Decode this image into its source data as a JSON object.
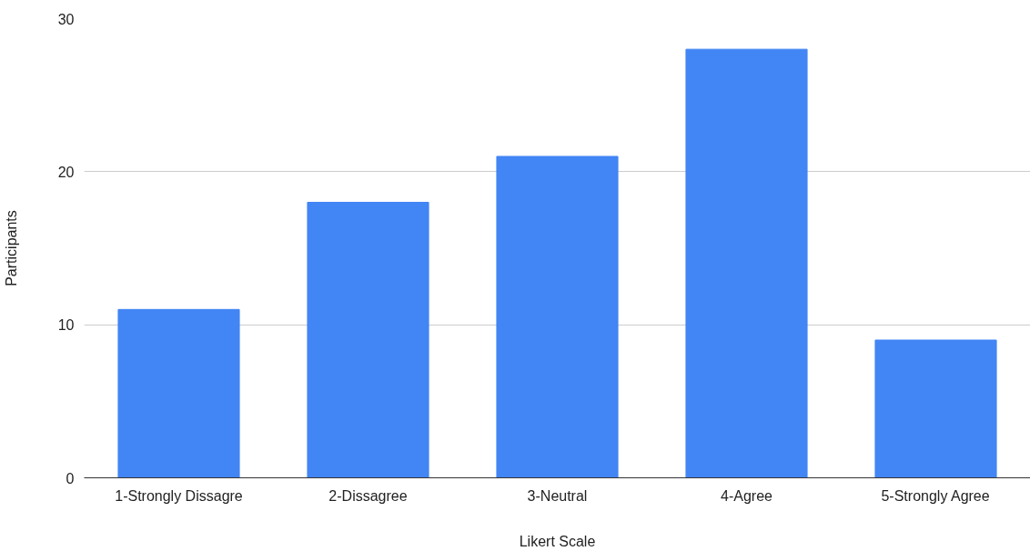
{
  "chart_data": {
    "type": "bar",
    "xlabel": "Likert Scale",
    "ylabel": "Participants",
    "categories": [
      "1-Strongly Dissagre",
      "2-Dissagree",
      "3-Neutral",
      "4-Agree",
      "5-Strongly Agree"
    ],
    "values": [
      11,
      18,
      21,
      28,
      9
    ],
    "color": "#4285f4",
    "ylim": [
      0,
      30
    ],
    "yticks": [
      0,
      10,
      20,
      30
    ],
    "grid": "y"
  }
}
